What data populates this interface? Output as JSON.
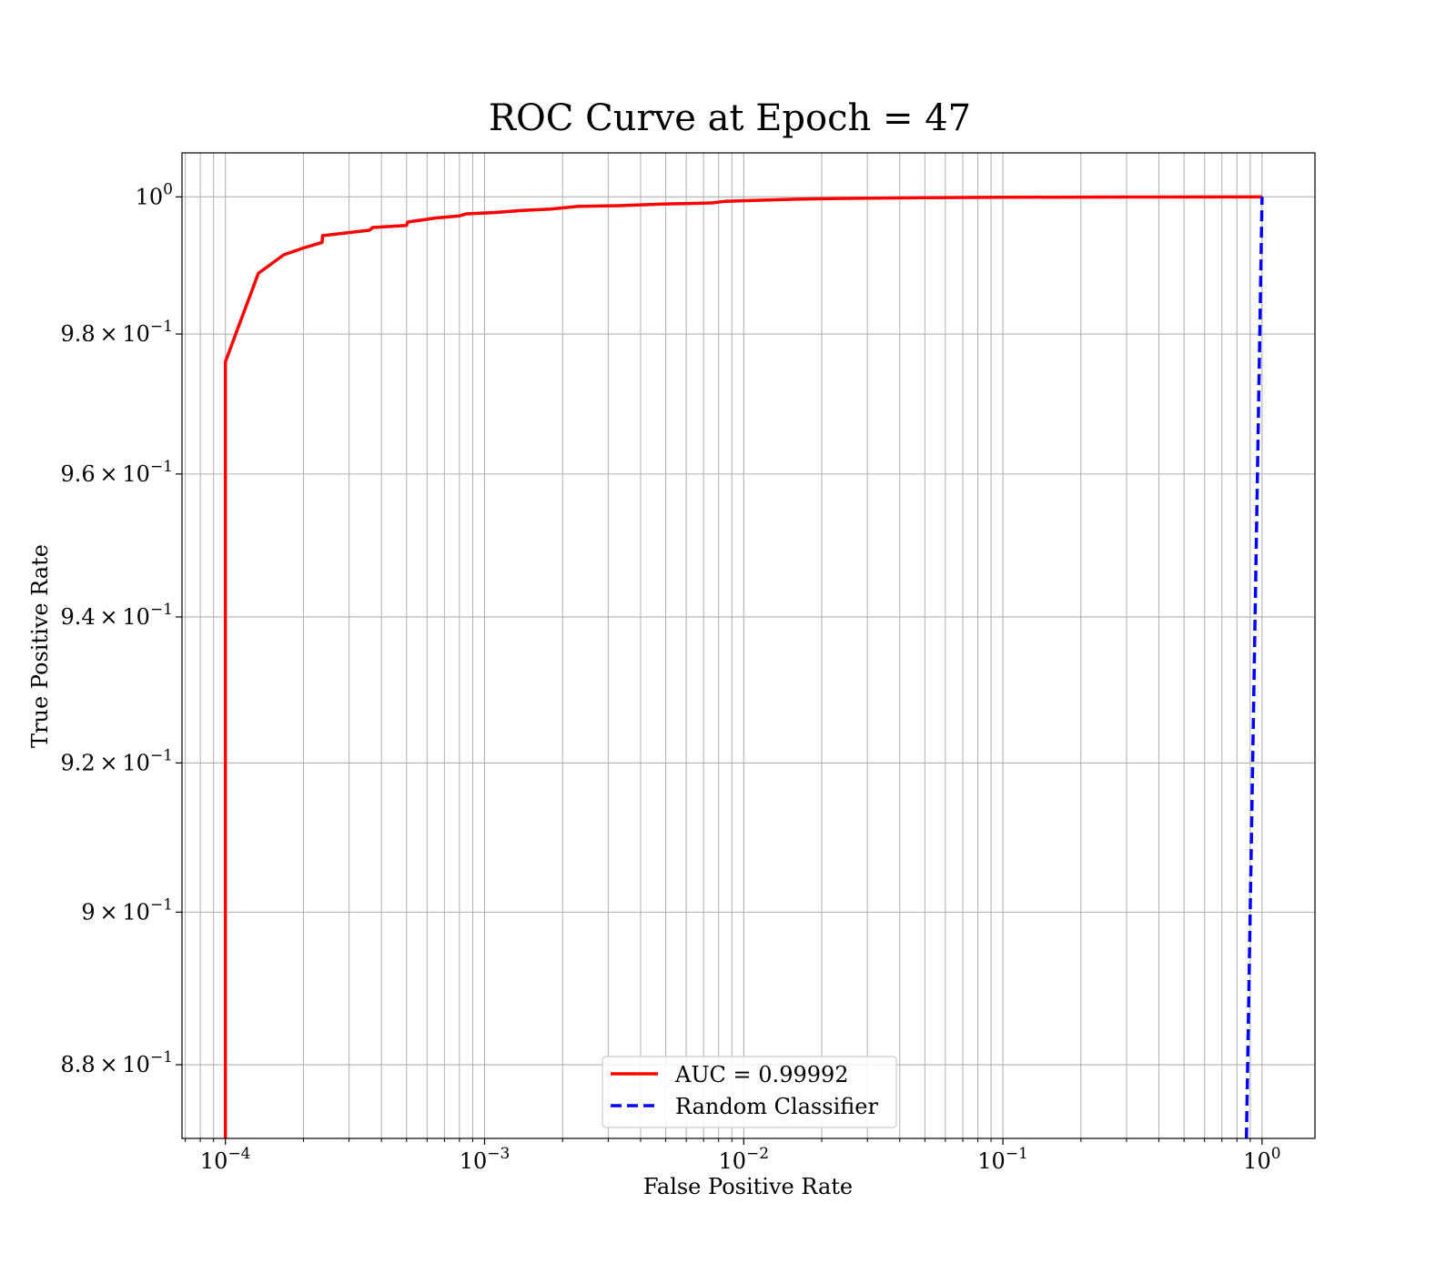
{
  "chart_data": {
    "type": "line",
    "title": "ROC Curve at Epoch = 47",
    "xlabel": "False Positive Rate",
    "ylabel": "True Positive Rate",
    "xscale": "log",
    "yscale": "log",
    "xlim": [
      6.8e-05,
      1.6
    ],
    "ylim": [
      0.8705,
      1.0065
    ],
    "grid": true,
    "legend_position": "lower center",
    "x_ticks": [
      {
        "value": 0.0001,
        "mantissa": "",
        "exponent": "−4"
      },
      {
        "value": 0.001,
        "mantissa": "",
        "exponent": "−3"
      },
      {
        "value": 0.01,
        "mantissa": "",
        "exponent": "−2"
      },
      {
        "value": 0.1,
        "mantissa": "",
        "exponent": "−1"
      },
      {
        "value": 1,
        "mantissa": "",
        "exponent": "0"
      }
    ],
    "y_ticks": [
      {
        "value": 0.88,
        "mantissa": "8.8",
        "exponent": "−1"
      },
      {
        "value": 0.9,
        "mantissa": "9",
        "exponent": "−1"
      },
      {
        "value": 0.92,
        "mantissa": "9.2",
        "exponent": "−1"
      },
      {
        "value": 0.94,
        "mantissa": "9.4",
        "exponent": "−1"
      },
      {
        "value": 0.96,
        "mantissa": "9.6",
        "exponent": "−1"
      },
      {
        "value": 0.98,
        "mantissa": "9.8",
        "exponent": "−1"
      },
      {
        "value": 1,
        "mantissa": "",
        "exponent": "0"
      }
    ],
    "series": [
      {
        "name": "AUC = 0.99992",
        "color": "#ff0000",
        "dash": "solid",
        "points": [
          [
            0.0001,
            0.8705
          ],
          [
            0.0001,
            0.88
          ],
          [
            0.0001,
            0.9
          ],
          [
            0.0001,
            0.92
          ],
          [
            0.0001,
            0.94
          ],
          [
            0.0001,
            0.96
          ],
          [
            0.0001,
            0.976
          ],
          [
            0.000134,
            0.9888
          ],
          [
            0.000168,
            0.9915
          ],
          [
            0.0002,
            0.9925
          ],
          [
            0.000236,
            0.9933
          ],
          [
            0.000237,
            0.9943
          ],
          [
            0.00036,
            0.9951
          ],
          [
            0.00037,
            0.9955
          ],
          [
            0.0005,
            0.9958
          ],
          [
            0.000505,
            0.9963
          ],
          [
            0.00065,
            0.9969
          ],
          [
            0.0008,
            0.9972
          ],
          [
            0.00085,
            0.9975
          ],
          [
            0.0011,
            0.9977
          ],
          [
            0.0014,
            0.998
          ],
          [
            0.0018,
            0.9982
          ],
          [
            0.0023,
            0.9986
          ],
          [
            0.0033,
            0.9987
          ],
          [
            0.005,
            0.99895
          ],
          [
            0.0075,
            0.9991
          ],
          [
            0.0085,
            0.99935
          ],
          [
            0.012,
            0.99952
          ],
          [
            0.016,
            0.99966
          ],
          [
            0.025,
            0.99978
          ],
          [
            0.05,
            0.99988
          ],
          [
            0.1,
            0.99994
          ],
          [
            0.3,
            0.99998
          ],
          [
            1.0,
            1.0
          ]
        ]
      },
      {
        "name": "Random Classifier",
        "color": "#0000ff",
        "dash": "dashed",
        "points": [
          [
            0.8705,
            0.8705
          ],
          [
            1.0,
            1.0
          ]
        ]
      }
    ]
  }
}
